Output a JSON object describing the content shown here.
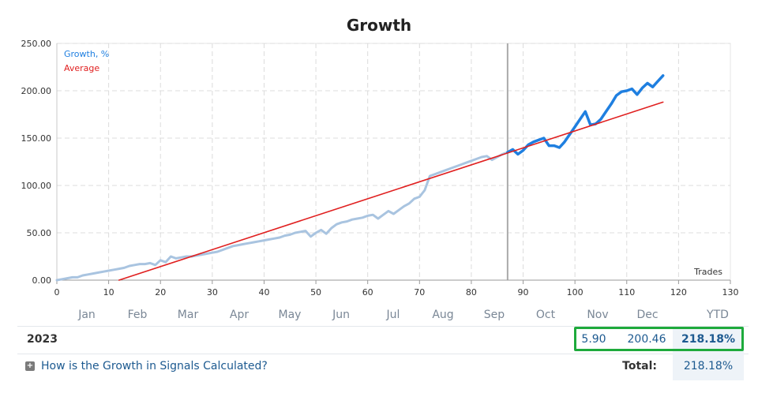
{
  "chart_data": {
    "type": "line",
    "title": "Growth",
    "xlabel": "Trades",
    "ylabel": "",
    "xlim": [
      0,
      130
    ],
    "ylim": [
      0,
      250
    ],
    "x_ticks": [
      "0",
      "10",
      "20",
      "30",
      "40",
      "50",
      "60",
      "70",
      "80",
      "90",
      "100",
      "110",
      "120",
      "130"
    ],
    "y_ticks": [
      "0.00",
      "50.00",
      "100.00",
      "150.00",
      "200.00",
      "250.00"
    ],
    "grid": true,
    "legend": "top-left",
    "marker_x": 87,
    "series": [
      {
        "name": "Growth, %",
        "color": "#a9c4e0",
        "x": [
          0,
          1,
          2,
          3,
          4,
          5,
          6,
          7,
          8,
          9,
          10,
          11,
          12,
          13,
          14,
          15,
          16,
          17,
          18,
          19,
          20,
          21,
          22,
          23,
          24,
          25,
          26,
          27,
          28,
          29,
          30,
          31,
          32,
          33,
          34,
          35,
          36,
          37,
          38,
          39,
          40,
          41,
          42,
          43,
          44,
          45,
          46,
          47,
          48,
          49,
          50,
          51,
          52,
          53,
          54,
          55,
          56,
          57,
          58,
          59,
          60,
          61,
          62,
          63,
          64,
          65,
          66,
          67,
          68,
          69,
          70,
          71,
          72,
          73,
          74,
          75,
          76,
          77,
          78,
          79,
          80,
          81,
          82,
          83,
          84,
          85,
          86,
          87
        ],
        "values": [
          0,
          1,
          2,
          3,
          3,
          5,
          6,
          7,
          8,
          9,
          10,
          11,
          12,
          13,
          15,
          16,
          17,
          17,
          18,
          16,
          21,
          19,
          25,
          23,
          24,
          25,
          25,
          26,
          27,
          28,
          29,
          30,
          32,
          34,
          36,
          37,
          38,
          39,
          40,
          41,
          42,
          43,
          44,
          45,
          47,
          48,
          50,
          51,
          52,
          46,
          50,
          53,
          49,
          55,
          59,
          61,
          62,
          64,
          65,
          66,
          68,
          69,
          65,
          69,
          73,
          70,
          74,
          78,
          81,
          86,
          88,
          95,
          110,
          112,
          114,
          116,
          118,
          120,
          122,
          124,
          126,
          128,
          130,
          131,
          127,
          130,
          133,
          135
        ]
      },
      {
        "name": "Growth, %",
        "color": "#1f7fe0",
        "x": [
          87,
          88,
          89,
          90,
          91,
          92,
          93,
          94,
          95,
          96,
          97,
          98,
          99,
          100,
          101,
          102,
          103,
          104,
          105,
          106,
          107,
          108,
          109,
          110,
          111,
          112,
          113,
          114,
          115,
          116,
          117
        ],
        "values": [
          135,
          138,
          133,
          137,
          143,
          146,
          148,
          150,
          142,
          142,
          140,
          146,
          154,
          162,
          170,
          178,
          164,
          165,
          170,
          178,
          186,
          195,
          199,
          200,
          202,
          196,
          203,
          208,
          204,
          210,
          216
        ]
      },
      {
        "name": "Average",
        "color": "#e02020",
        "x": [
          12,
          117
        ],
        "values": [
          0,
          188
        ]
      }
    ],
    "legend_entries": [
      {
        "label": "Growth, %",
        "color": "#1f7fe0"
      },
      {
        "label": "Average",
        "color": "#e02020"
      }
    ]
  },
  "table": {
    "months": [
      "Jan",
      "Feb",
      "Mar",
      "Apr",
      "May",
      "Jun",
      "Jul",
      "Aug",
      "Sep",
      "Oct",
      "Nov",
      "Dec",
      "YTD"
    ],
    "year": "2023",
    "nov_value": "5.90",
    "dec_value": "200.46",
    "ytd_value": "218.18%"
  },
  "footer": {
    "help_link": "How is the Growth in Signals Calculated?",
    "total_label": "Total:",
    "total_value": "218.18%"
  },
  "colors": {
    "highlight_border": "#1eaa3c",
    "link": "#1d5a90"
  }
}
